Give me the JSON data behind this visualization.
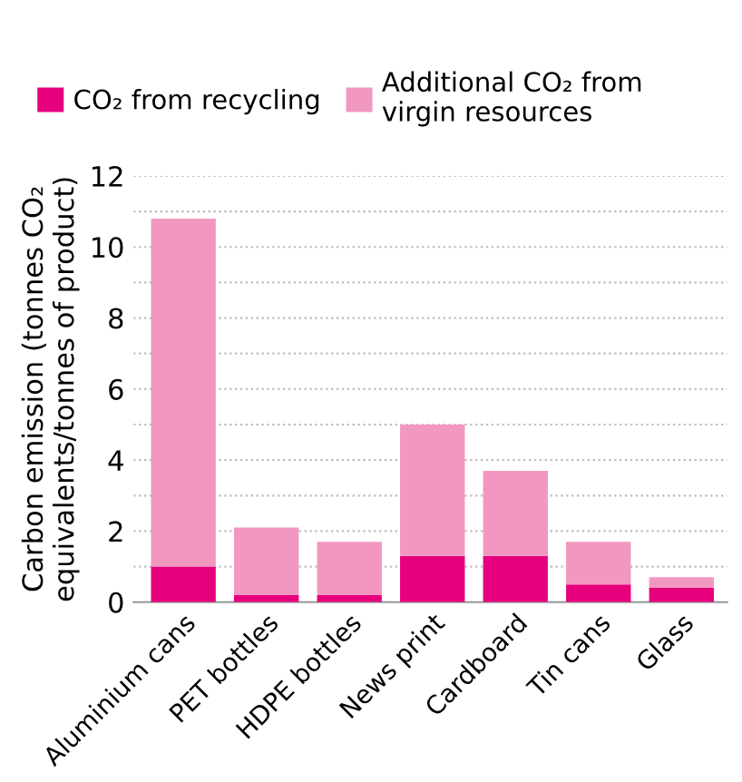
{
  "chart_data": {
    "type": "bar",
    "stacked": true,
    "ylabel": "Carbon emission (tonnes CO₂\nequivalents/tonnes of product)",
    "categories": [
      "Aluminium cans",
      "PET bottles",
      "HDPE bottles",
      "News print",
      "Cardboard",
      "Tin cans",
      "Glass"
    ],
    "series": [
      {
        "name": "CO₂ from recycling",
        "color": "#e6007e",
        "values": [
          1.0,
          0.2,
          0.2,
          1.3,
          1.3,
          0.5,
          0.4
        ]
      },
      {
        "name": "Additional CO₂ from\nvirgin resources",
        "color": "#f298c0",
        "values": [
          9.8,
          1.9,
          1.5,
          3.7,
          2.4,
          1.2,
          0.3
        ]
      }
    ],
    "ylim": [
      0,
      12
    ],
    "yticks": [
      0,
      {
        "value": 1,
        "label": null
      },
      2,
      {
        "value": 3,
        "label": null
      },
      4,
      {
        "value": 5,
        "label": null
      },
      6,
      {
        "value": 7,
        "label": null
      },
      8,
      {
        "value": 9,
        "label": null
      },
      10,
      {
        "value": 11,
        "label": null
      },
      12
    ],
    "grid": "y",
    "legend": "top"
  }
}
